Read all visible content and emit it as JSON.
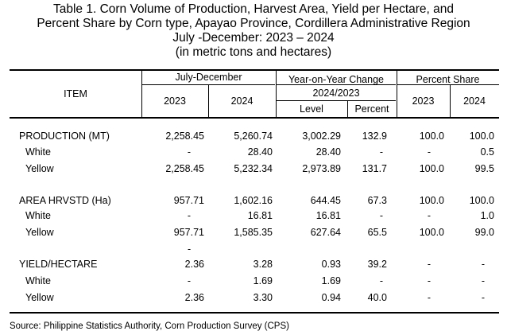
{
  "title": {
    "line1": "Table 1. Corn Volume of Production, Harvest Area, Yield per Hectare, and",
    "line2": "Percent Share by Corn type, Apayao Province, Cordillera Administrative Region",
    "line3": "July -December: 2023 – 2024",
    "line4": "(in metric tons and hectares)"
  },
  "header": {
    "item": "ITEM",
    "period": "July-December",
    "yoy": "Year-on-Year Change",
    "yoy_period": "2024/2023",
    "share": "Percent Share",
    "y2023": "2023",
    "y2024": "2024",
    "level": "Level",
    "percent": "Percent",
    "share2023": "2023",
    "share2024": "2024"
  },
  "rows": [
    {
      "item": "PRODUCTION (MT)",
      "v2023": "2,258.45",
      "v2024": "5,260.74",
      "level": "3,002.29",
      "pct": "132.9",
      "s2023": "100.0",
      "s2024": "100.0"
    },
    {
      "item": "White",
      "v2023": "-",
      "v2024": "28.40",
      "level": "28.40",
      "pct": "-",
      "s2023": "-",
      "s2024": "0.5"
    },
    {
      "item": "Yellow",
      "v2023": "2,258.45",
      "v2024": "5,232.34",
      "level": "2,973.89",
      "pct": "131.7",
      "s2023": "100.0",
      "s2024": "99.5"
    },
    {
      "item": "AREA HRVSTD (Ha)",
      "v2023": "957.71",
      "v2024": "1,602.16",
      "level": "644.45",
      "pct": "67.3",
      "s2023": "100.0",
      "s2024": "100.0"
    },
    {
      "item": "White",
      "v2023": "-",
      "v2024": "16.81",
      "level": "16.81",
      "pct": "-",
      "s2023": "-",
      "s2024": "1.0"
    },
    {
      "item": "Yellow",
      "v2023": "957.71",
      "v2024": "1,585.35",
      "level": "627.64",
      "pct": "65.5",
      "s2023": "100.0",
      "s2024": "99.0"
    },
    {
      "item": "YIELD/HECTARE",
      "v2023": "2.36",
      "v2024": "3.28",
      "level": "0.93",
      "pct": "39.2",
      "s2023": "-",
      "s2024": "-"
    },
    {
      "item": "White",
      "v2023": "-",
      "v2024": "1.69",
      "level": "1.69",
      "pct": "-",
      "s2023": "-",
      "s2024": "-"
    },
    {
      "item": "Yellow",
      "v2023": "2.36",
      "v2024": "3.30",
      "level": "0.94",
      "pct": "40.0",
      "s2023": "-",
      "s2024": "-"
    }
  ],
  "stray_dash": "-",
  "source": "Source: Philippine Statistics Authority, Corn Production Survey (CPS)"
}
